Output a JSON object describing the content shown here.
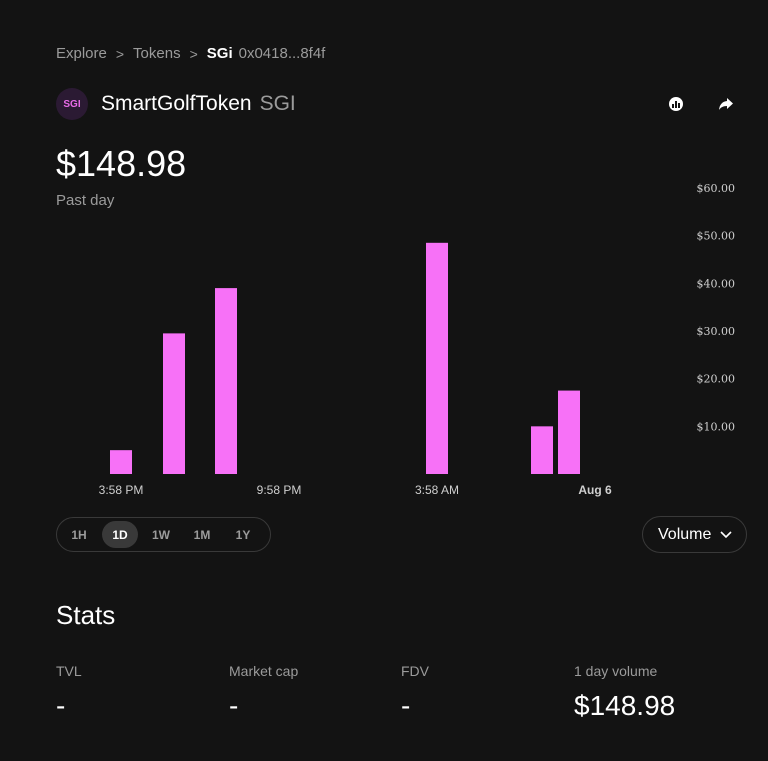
{
  "breadcrumb": {
    "explore": "Explore",
    "tokens": "Tokens",
    "symbol": "SGi",
    "address": "0x0418...8f4f",
    "separator": ">"
  },
  "token": {
    "logo_text": "SGI",
    "name": "SmartGolfToken",
    "symbol": "SGI"
  },
  "header_icons": [
    "chart-icon",
    "share-icon"
  ],
  "price": {
    "value": "$148.98",
    "period": "Past day"
  },
  "colors": {
    "background": "#131313",
    "bar": "#f771f7",
    "muted": "#9b9b9b",
    "border": "#393939"
  },
  "chart_data": {
    "type": "bar",
    "series": [
      {
        "values": [
          5,
          29.5,
          39,
          48.5,
          10,
          17.5
        ]
      }
    ],
    "x_ticks": [
      "3:58 PM",
      "9:58 PM",
      "3:58 AM",
      "Aug 6"
    ],
    "y_ticks": [
      "$60.00",
      "$50.00",
      "$40.00",
      "$30.00",
      "$20.00",
      "$10.00"
    ],
    "ylim": [
      0,
      60
    ],
    "grid": false
  },
  "time_range": {
    "options": [
      "1H",
      "1D",
      "1W",
      "1M",
      "1Y"
    ],
    "selected": "1D"
  },
  "chart_type_select": {
    "value": "Volume"
  },
  "stats": {
    "title": "Stats",
    "items": [
      {
        "label": "TVL",
        "value": "-"
      },
      {
        "label": "Market cap",
        "value": "-"
      },
      {
        "label": "FDV",
        "value": "-"
      },
      {
        "label": "1 day volume",
        "value": "$148.98"
      }
    ]
  }
}
